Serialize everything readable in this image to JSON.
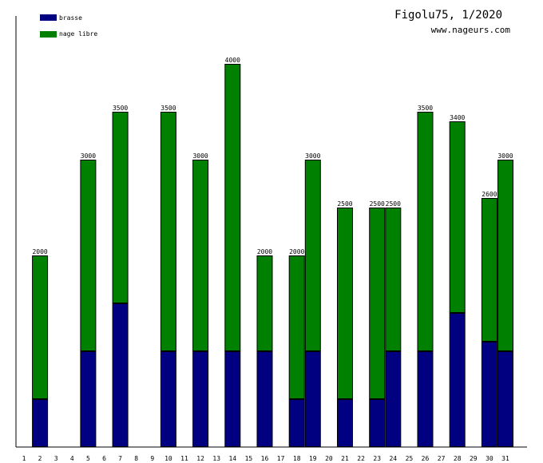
{
  "header": {
    "title": "Figolu75, 1/2020",
    "site": "www.nageurs.com"
  },
  "colors": {
    "brasse": "#000080",
    "nage_libre": "#008000",
    "axis": "#000000",
    "background": "#ffffff"
  },
  "chart_data": {
    "type": "bar",
    "stacked": true,
    "legend_position": "top-left",
    "grid": false,
    "ylim": [
      0,
      4000
    ],
    "categories": [
      "1",
      "2",
      "3",
      "4",
      "5",
      "6",
      "7",
      "8",
      "9",
      "10",
      "11",
      "12",
      "13",
      "14",
      "15",
      "16",
      "17",
      "18",
      "19",
      "20",
      "21",
      "22",
      "23",
      "24",
      "25",
      "26",
      "27",
      "28",
      "29",
      "30",
      "31"
    ],
    "series": [
      {
        "name": "brasse",
        "values": [
          0,
          500,
          0,
          0,
          1000,
          0,
          1500,
          0,
          0,
          1000,
          0,
          1000,
          0,
          1000,
          0,
          1000,
          0,
          500,
          1000,
          0,
          500,
          0,
          500,
          1000,
          0,
          1000,
          0,
          1400,
          0,
          1100,
          1000
        ]
      },
      {
        "name": "nage libre",
        "values": [
          0,
          1500,
          0,
          0,
          2000,
          0,
          2000,
          0,
          0,
          2500,
          0,
          2000,
          0,
          3000,
          0,
          1000,
          0,
          1500,
          2000,
          0,
          2000,
          0,
          2000,
          1500,
          0,
          2500,
          0,
          2000,
          0,
          1500,
          2000
        ]
      }
    ],
    "totals": [
      0,
      2000,
      0,
      0,
      3000,
      0,
      3500,
      0,
      0,
      3500,
      0,
      3000,
      0,
      4000,
      0,
      2000,
      0,
      2000,
      3000,
      0,
      2500,
      0,
      2500,
      2500,
      0,
      3500,
      0,
      3400,
      0,
      2600,
      3000
    ],
    "total_labels": [
      "",
      "2000",
      "",
      "",
      "3000",
      "",
      "3500",
      "",
      "",
      "3500",
      "",
      "3000",
      "",
      "4000",
      "",
      "2000",
      "",
      "2000",
      "3000",
      "",
      "2500",
      "",
      "2500",
      "2500",
      "",
      "3500",
      "",
      "3400",
      "",
      "2600",
      "3000"
    ]
  }
}
